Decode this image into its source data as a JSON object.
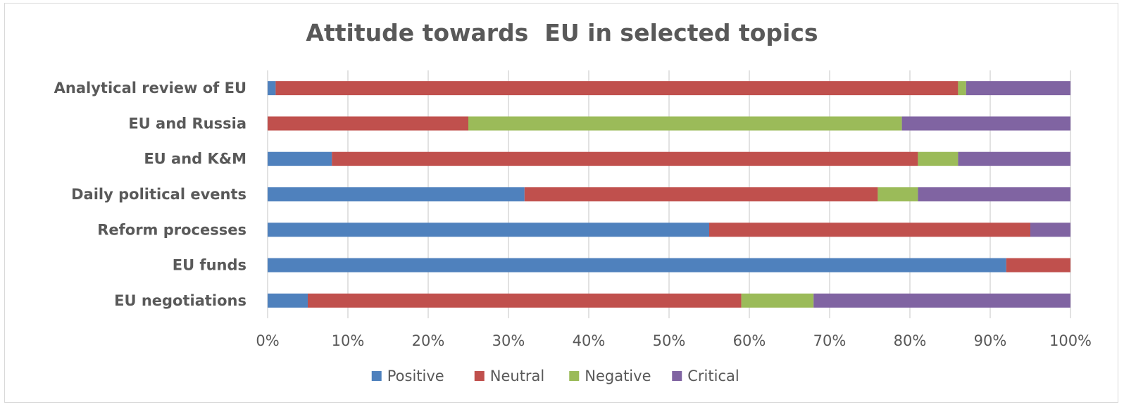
{
  "chart_data": {
    "type": "bar",
    "orientation": "horizontal",
    "stacked": "percent",
    "title": "Attitude towards  EU in selected topics",
    "xlabel": "",
    "ylabel": "",
    "xlim": [
      0,
      100
    ],
    "ticks": [
      "0%",
      "10%",
      "20%",
      "30%",
      "40%",
      "50%",
      "60%",
      "70%",
      "80%",
      "90%",
      "100%"
    ],
    "grid": true,
    "legend_position": "bottom",
    "categories": [
      "Analytical review of EU",
      "EU and Russia",
      "EU and K&M",
      "Daily political events",
      "Reform processes",
      "EU funds",
      "EU negotiations"
    ],
    "series": [
      {
        "name": "Positive",
        "color": "#4f81bd",
        "values": [
          1,
          0,
          8,
          32,
          55,
          92,
          5
        ]
      },
      {
        "name": "Neutral",
        "color": "#c0504d",
        "values": [
          85,
          25,
          73,
          44,
          40,
          8,
          54
        ]
      },
      {
        "name": "Negative",
        "color": "#9bbb59",
        "values": [
          1,
          54,
          5,
          5,
          0,
          0,
          9
        ]
      },
      {
        "name": "Critical",
        "color": "#8064a2",
        "values": [
          13,
          21,
          14,
          19,
          5,
          0,
          32
        ]
      }
    ]
  }
}
